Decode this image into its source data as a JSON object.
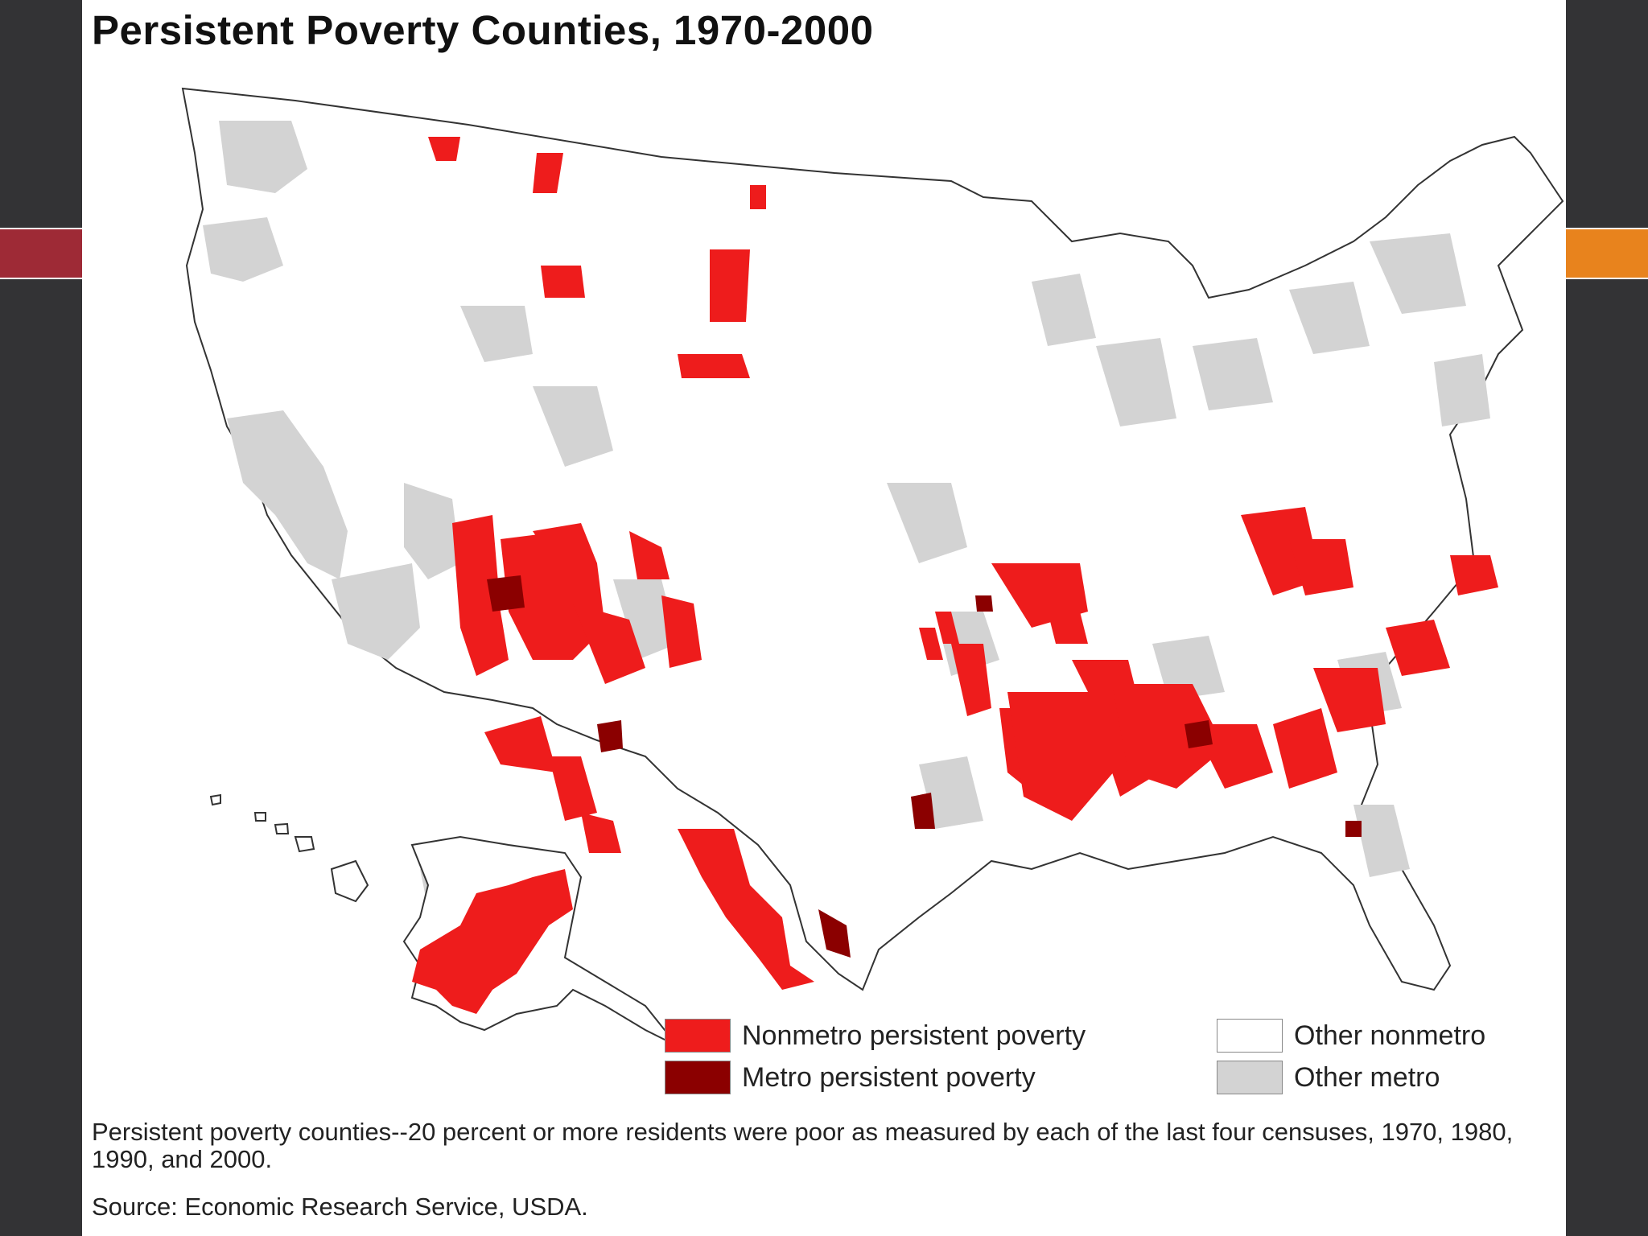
{
  "title": "Persistent Poverty Counties, 1970-2000",
  "legend": [
    {
      "label": "Nonmetro persistent poverty",
      "color": "#ee1c1c"
    },
    {
      "label": "Metro persistent poverty",
      "color": "#8b0000"
    },
    {
      "label": "Other nonmetro",
      "color": "#ffffff"
    },
    {
      "label": "Other metro",
      "color": "#d3d3d3"
    }
  ],
  "caption": "Persistent poverty counties--20 percent or more residents were poor as measured by each of the last four censuses, 1970, 1980, 1990, and 2000.",
  "source": "Source: Economic Research Service, USDA.",
  "colors": {
    "accent_left": "#9e2a36",
    "accent_right": "#e8831d",
    "background": "#333335"
  }
}
